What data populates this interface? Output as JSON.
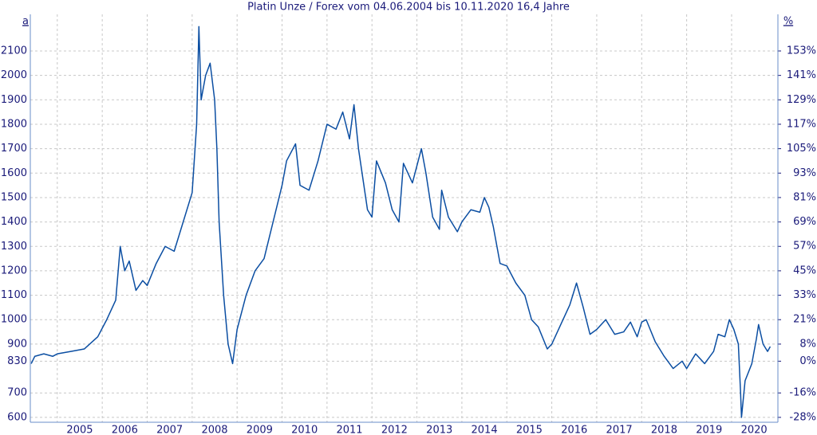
{
  "chart_data": {
    "type": "line",
    "title": "Platin Unze / Forex vom 04.06.2004 bis 10.11.2020 16,4 Jahre",
    "left_corner_label": "a",
    "right_corner_label": "%",
    "grid": true,
    "xlim": [
      2004.4,
      2021.03
    ],
    "xticks": [
      2005,
      2006,
      2007,
      2008,
      2009,
      2010,
      2011,
      2012,
      2013,
      2014,
      2015,
      2016,
      2017,
      2018,
      2019,
      2020
    ],
    "ylim": [
      580,
      2250
    ],
    "yticks": [
      600,
      700,
      830,
      900,
      1000,
      1100,
      1200,
      1300,
      1400,
      1500,
      1600,
      1700,
      1800,
      1900,
      2000,
      2100
    ],
    "y2lim": [
      -30.12,
      171.08
    ],
    "y2ticks": [
      {
        "value": -27.71,
        "label": "-28%"
      },
      {
        "value": -15.66,
        "label": "-16%"
      },
      {
        "value": 0,
        "label": "0%"
      },
      {
        "value": 8.43,
        "label": "8%"
      },
      {
        "value": 20.48,
        "label": "21%"
      },
      {
        "value": 32.53,
        "label": "33%"
      },
      {
        "value": 44.58,
        "label": "45%"
      },
      {
        "value": 56.63,
        "label": "57%"
      },
      {
        "value": 68.67,
        "label": "69%"
      },
      {
        "value": 80.72,
        "label": "81%"
      },
      {
        "value": 92.77,
        "label": "93%"
      },
      {
        "value": 104.82,
        "label": "105%"
      },
      {
        "value": 116.87,
        "label": "117%"
      },
      {
        "value": 128.92,
        "label": "129%"
      },
      {
        "value": 140.96,
        "label": "141%"
      },
      {
        "value": 153.01,
        "label": "153%"
      }
    ],
    "series": [
      {
        "color": "#0b4ea2",
        "x": [
          2004.42,
          2004.5,
          2004.7,
          2004.9,
          2005.0,
          2005.3,
          2005.6,
          2005.9,
          2006.1,
          2006.3,
          2006.4,
          2006.5,
          2006.6,
          2006.75,
          2006.9,
          2007.0,
          2007.2,
          2007.4,
          2007.6,
          2007.8,
          2008.0,
          2008.1,
          2008.15,
          2008.2,
          2008.3,
          2008.4,
          2008.5,
          2008.55,
          2008.6,
          2008.7,
          2008.8,
          2008.9,
          2009.0,
          2009.2,
          2009.4,
          2009.6,
          2009.8,
          2010.0,
          2010.1,
          2010.3,
          2010.4,
          2010.6,
          2010.8,
          2011.0,
          2011.2,
          2011.35,
          2011.5,
          2011.6,
          2011.7,
          2011.9,
          2012.0,
          2012.1,
          2012.3,
          2012.45,
          2012.6,
          2012.7,
          2012.8,
          2012.9,
          2013.1,
          2013.2,
          2013.35,
          2013.5,
          2013.55,
          2013.7,
          2013.9,
          2014.0,
          2014.2,
          2014.4,
          2014.5,
          2014.6,
          2014.7,
          2014.85,
          2015.0,
          2015.2,
          2015.4,
          2015.55,
          2015.7,
          2015.9,
          2016.0,
          2016.2,
          2016.4,
          2016.55,
          2016.7,
          2016.85,
          2017.0,
          2017.2,
          2017.4,
          2017.6,
          2017.75,
          2017.9,
          2018.0,
          2018.1,
          2018.3,
          2018.5,
          2018.7,
          2018.9,
          2019.0,
          2019.2,
          2019.4,
          2019.6,
          2019.7,
          2019.85,
          2019.95,
          2020.05,
          2020.15,
          2020.2,
          2020.22,
          2020.3,
          2020.45,
          2020.55,
          2020.6,
          2020.7,
          2020.8,
          2020.86
        ],
        "values": [
          820,
          850,
          860,
          850,
          860,
          870,
          880,
          930,
          1000,
          1080,
          1300,
          1200,
          1240,
          1120,
          1160,
          1140,
          1230,
          1300,
          1280,
          1400,
          1520,
          1800,
          2200,
          1900,
          2000,
          2050,
          1900,
          1700,
          1400,
          1100,
          900,
          820,
          960,
          1100,
          1200,
          1250,
          1400,
          1550,
          1650,
          1720,
          1550,
          1530,
          1650,
          1800,
          1780,
          1850,
          1740,
          1880,
          1700,
          1450,
          1420,
          1650,
          1560,
          1450,
          1400,
          1640,
          1600,
          1560,
          1700,
          1600,
          1420,
          1370,
          1530,
          1420,
          1360,
          1400,
          1450,
          1440,
          1500,
          1460,
          1380,
          1230,
          1220,
          1150,
          1100,
          1000,
          970,
          880,
          900,
          980,
          1060,
          1150,
          1050,
          940,
          960,
          1000,
          940,
          950,
          990,
          930,
          990,
          1000,
          910,
          850,
          800,
          830,
          800,
          860,
          820,
          870,
          940,
          930,
          1000,
          960,
          900,
          700,
          600,
          750,
          820,
          920,
          980,
          900,
          870,
          890
        ]
      }
    ]
  }
}
